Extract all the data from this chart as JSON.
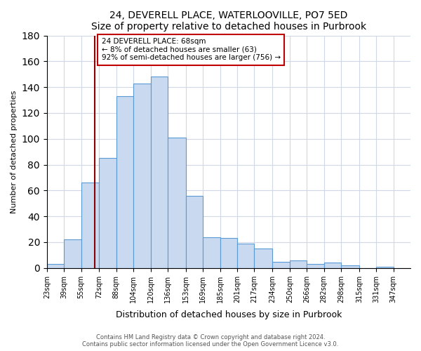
{
  "title": "24, DEVERELL PLACE, WATERLOOVILLE, PO7 5ED",
  "subtitle": "Size of property relative to detached houses in Purbrook",
  "xlabel": "Distribution of detached houses by size in Purbrook",
  "ylabel": "Number of detached properties",
  "bin_labels": [
    "23sqm",
    "39sqm",
    "55sqm",
    "72sqm",
    "88sqm",
    "104sqm",
    "120sqm",
    "136sqm",
    "153sqm",
    "169sqm",
    "185sqm",
    "201sqm",
    "217sqm",
    "234sqm",
    "250sqm",
    "266sqm",
    "282sqm",
    "298sqm",
    "315sqm",
    "331sqm",
    "347sqm"
  ],
  "bin_edges": [
    23,
    39,
    55,
    72,
    88,
    104,
    120,
    136,
    153,
    169,
    185,
    201,
    217,
    234,
    250,
    266,
    282,
    298,
    315,
    331,
    347,
    363
  ],
  "bar_heights": [
    3,
    22,
    66,
    85,
    133,
    143,
    148,
    101,
    56,
    24,
    23,
    19,
    15,
    5,
    6,
    3,
    4,
    2,
    0,
    1,
    0
  ],
  "bar_color": "#c9d9f0",
  "bar_edge_color": "#5b9bd5",
  "vline_x": 68,
  "vline_color": "#8b0000",
  "annotation_title": "24 DEVERELL PLACE: 68sqm",
  "annotation_line1": "← 8% of detached houses are smaller (63)",
  "annotation_line2": "92% of semi-detached houses are larger (756) →",
  "annotation_box_color": "#ffffff",
  "annotation_box_edge": "#c00000",
  "ylim": [
    0,
    180
  ],
  "yticks": [
    0,
    20,
    40,
    60,
    80,
    100,
    120,
    140,
    160,
    180
  ],
  "footer1": "Contains HM Land Registry data © Crown copyright and database right 2024.",
  "footer2": "Contains public sector information licensed under the Open Government Licence v3.0.",
  "background_color": "#ffffff",
  "grid_color": "#d0d8e8"
}
